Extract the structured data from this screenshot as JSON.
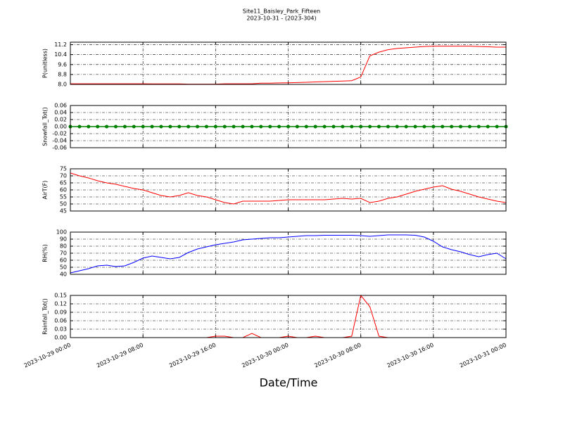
{
  "chart_data": [
    {
      "type": "line",
      "title": "Site11_Baisley_Park_Fifteen",
      "subtitle": "2023-10-31 - (2023-304)",
      "ylabel": "P(unitless)",
      "color": "#ff0000",
      "x": [
        "2023-10-29 00:00",
        "2023-10-29 01:00",
        "2023-10-29 02:00",
        "2023-10-29 03:00",
        "2023-10-29 04:00",
        "2023-10-29 05:00",
        "2023-10-29 06:00",
        "2023-10-29 07:00",
        "2023-10-29 08:00",
        "2023-10-29 09:00",
        "2023-10-29 10:00",
        "2023-10-29 11:00",
        "2023-10-29 12:00",
        "2023-10-29 13:00",
        "2023-10-29 14:00",
        "2023-10-29 15:00",
        "2023-10-29 16:00",
        "2023-10-29 17:00",
        "2023-10-29 18:00",
        "2023-10-29 19:00",
        "2023-10-29 20:00",
        "2023-10-29 21:00",
        "2023-10-29 22:00",
        "2023-10-29 23:00",
        "2023-10-30 00:00",
        "2023-10-30 01:00",
        "2023-10-30 02:00",
        "2023-10-30 03:00",
        "2023-10-30 04:00",
        "2023-10-30 05:00",
        "2023-10-30 06:00",
        "2023-10-30 07:00",
        "2023-10-30 08:00",
        "2023-10-30 09:00",
        "2023-10-30 10:00",
        "2023-10-30 11:00",
        "2023-10-30 12:00",
        "2023-10-30 13:00",
        "2023-10-30 14:00",
        "2023-10-30 15:00",
        "2023-10-30 16:00",
        "2023-10-30 17:00",
        "2023-10-30 18:00",
        "2023-10-30 19:00",
        "2023-10-30 20:00",
        "2023-10-30 21:00",
        "2023-10-30 22:00",
        "2023-10-30 23:00",
        "2023-10-31 00:00"
      ],
      "values": [
        8.05,
        8.05,
        8.05,
        8.05,
        8.05,
        8.05,
        8.05,
        8.05,
        8.05,
        8.04,
        8.04,
        8.04,
        8.04,
        8.02,
        8.02,
        8.02,
        8.02,
        8.05,
        8.05,
        8.05,
        8.05,
        8.1,
        8.1,
        8.12,
        8.13,
        8.15,
        8.17,
        8.2,
        8.22,
        8.25,
        8.27,
        8.3,
        8.6,
        10.3,
        10.6,
        10.8,
        10.9,
        10.95,
        11.0,
        11.05,
        11.08,
        11.08,
        11.08,
        11.08,
        11.08,
        11.05,
        11.03,
        11.0,
        11.0
      ],
      "xlim": [
        "2023-10-29 00:00",
        "2023-10-31 00:00"
      ],
      "xticks": [
        "2023-10-29 00:00",
        "2023-10-29 08:00",
        "2023-10-29 16:00",
        "2023-10-30 00:00",
        "2023-10-30 08:00",
        "2023-10-30 16:00",
        "2023-10-31 00:00"
      ],
      "ylim": [
        8.0,
        11.4
      ],
      "yticks": [
        {
          "value": 8.0,
          "label": "8.0"
        },
        8.8,
        9.6,
        10.4,
        11.2
      ],
      "grid": true
    },
    {
      "type": "line",
      "ylabel": "Snowfall_Tot()",
      "color": "#008000",
      "markers": true,
      "x": [
        "2023-10-29 00:00",
        "2023-10-29 01:00",
        "2023-10-29 02:00",
        "2023-10-29 03:00",
        "2023-10-29 04:00",
        "2023-10-29 05:00",
        "2023-10-29 06:00",
        "2023-10-29 07:00",
        "2023-10-29 08:00",
        "2023-10-29 09:00",
        "2023-10-29 10:00",
        "2023-10-29 11:00",
        "2023-10-29 12:00",
        "2023-10-29 13:00",
        "2023-10-29 14:00",
        "2023-10-29 15:00",
        "2023-10-29 16:00",
        "2023-10-29 17:00",
        "2023-10-29 18:00",
        "2023-10-29 19:00",
        "2023-10-29 20:00",
        "2023-10-29 21:00",
        "2023-10-29 22:00",
        "2023-10-29 23:00",
        "2023-10-30 00:00",
        "2023-10-30 01:00",
        "2023-10-30 02:00",
        "2023-10-30 03:00",
        "2023-10-30 04:00",
        "2023-10-30 05:00",
        "2023-10-30 06:00",
        "2023-10-30 07:00",
        "2023-10-30 08:00",
        "2023-10-30 09:00",
        "2023-10-30 10:00",
        "2023-10-30 11:00",
        "2023-10-30 12:00",
        "2023-10-30 13:00",
        "2023-10-30 14:00",
        "2023-10-30 15:00",
        "2023-10-30 16:00",
        "2023-10-30 17:00",
        "2023-10-30 18:00",
        "2023-10-30 19:00",
        "2023-10-30 20:00",
        "2023-10-30 21:00",
        "2023-10-30 22:00",
        "2023-10-30 23:00",
        "2023-10-31 00:00"
      ],
      "values": [
        0,
        0,
        0,
        0,
        0,
        0,
        0,
        0,
        0,
        0,
        0,
        0,
        0,
        0,
        0,
        0,
        0,
        0,
        0,
        0,
        0,
        0,
        0,
        0,
        0,
        0,
        0,
        0,
        0,
        0,
        0,
        0,
        0,
        0,
        0,
        0,
        0,
        0,
        0,
        0,
        0,
        0,
        0,
        0,
        0,
        0,
        0,
        0,
        0
      ],
      "xlim": [
        "2023-10-29 00:00",
        "2023-10-31 00:00"
      ],
      "xticks": [
        "2023-10-29 00:00",
        "2023-10-29 08:00",
        "2023-10-29 16:00",
        "2023-10-30 00:00",
        "2023-10-30 08:00",
        "2023-10-30 16:00",
        "2023-10-31 00:00"
      ],
      "ylim": [
        -0.06,
        0.06
      ],
      "yticks": [
        -0.06,
        -0.04,
        -0.02,
        {
          "value": 0,
          "label": "0.00"
        },
        0.02,
        0.04,
        0.06
      ],
      "grid": true
    },
    {
      "type": "line",
      "ylabel": "AirT(F)",
      "color": "#ff0000",
      "x": [
        "2023-10-29 00:00",
        "2023-10-29 01:00",
        "2023-10-29 02:00",
        "2023-10-29 03:00",
        "2023-10-29 04:00",
        "2023-10-29 05:00",
        "2023-10-29 06:00",
        "2023-10-29 07:00",
        "2023-10-29 08:00",
        "2023-10-29 09:00",
        "2023-10-29 10:00",
        "2023-10-29 11:00",
        "2023-10-29 12:00",
        "2023-10-29 13:00",
        "2023-10-29 14:00",
        "2023-10-29 15:00",
        "2023-10-29 16:00",
        "2023-10-29 17:00",
        "2023-10-29 18:00",
        "2023-10-29 19:00",
        "2023-10-29 20:00",
        "2023-10-29 21:00",
        "2023-10-29 22:00",
        "2023-10-29 23:00",
        "2023-10-30 00:00",
        "2023-10-30 01:00",
        "2023-10-30 02:00",
        "2023-10-30 03:00",
        "2023-10-30 04:00",
        "2023-10-30 05:00",
        "2023-10-30 06:00",
        "2023-10-30 07:00",
        "2023-10-30 08:00",
        "2023-10-30 09:00",
        "2023-10-30 10:00",
        "2023-10-30 11:00",
        "2023-10-30 12:00",
        "2023-10-30 13:00",
        "2023-10-30 14:00",
        "2023-10-30 15:00",
        "2023-10-30 16:00",
        "2023-10-30 17:00",
        "2023-10-30 18:00",
        "2023-10-30 19:00",
        "2023-10-30 20:00",
        "2023-10-30 21:00",
        "2023-10-30 22:00",
        "2023-10-30 23:00",
        "2023-10-31 00:00"
      ],
      "values": [
        72,
        70,
        68.5,
        66.5,
        65,
        64,
        62.5,
        61,
        60,
        58,
        56,
        55,
        56,
        58,
        56,
        55,
        53,
        51,
        50,
        52,
        52,
        52,
        52,
        52.5,
        53,
        53,
        53,
        53,
        53,
        53.5,
        54,
        53.5,
        54,
        51,
        52,
        54,
        55,
        57,
        59,
        60.5,
        62,
        63,
        60.5,
        59,
        57,
        55,
        53.5,
        52,
        51
      ],
      "xlim": [
        "2023-10-29 00:00",
        "2023-10-31 00:00"
      ],
      "xticks": [
        "2023-10-29 00:00",
        "2023-10-29 08:00",
        "2023-10-29 16:00",
        "2023-10-30 00:00",
        "2023-10-30 08:00",
        "2023-10-30 16:00",
        "2023-10-31 00:00"
      ],
      "ylim": [
        45,
        75
      ],
      "yticks": [
        45,
        50,
        55,
        60,
        65,
        70,
        75
      ],
      "grid": true
    },
    {
      "type": "line",
      "ylabel": "RH(%)",
      "color": "#0000ff",
      "x": [
        "2023-10-29 00:00",
        "2023-10-29 01:00",
        "2023-10-29 02:00",
        "2023-10-29 03:00",
        "2023-10-29 04:00",
        "2023-10-29 05:00",
        "2023-10-29 06:00",
        "2023-10-29 07:00",
        "2023-10-29 08:00",
        "2023-10-29 09:00",
        "2023-10-29 10:00",
        "2023-10-29 11:00",
        "2023-10-29 12:00",
        "2023-10-29 13:00",
        "2023-10-29 14:00",
        "2023-10-29 15:00",
        "2023-10-29 16:00",
        "2023-10-29 17:00",
        "2023-10-29 18:00",
        "2023-10-29 19:00",
        "2023-10-29 20:00",
        "2023-10-29 21:00",
        "2023-10-29 22:00",
        "2023-10-29 23:00",
        "2023-10-30 00:00",
        "2023-10-30 01:00",
        "2023-10-30 02:00",
        "2023-10-30 03:00",
        "2023-10-30 04:00",
        "2023-10-30 05:00",
        "2023-10-30 06:00",
        "2023-10-30 07:00",
        "2023-10-30 08:00",
        "2023-10-30 09:00",
        "2023-10-30 10:00",
        "2023-10-30 11:00",
        "2023-10-30 12:00",
        "2023-10-30 13:00",
        "2023-10-30 14:00",
        "2023-10-30 15:00",
        "2023-10-30 16:00",
        "2023-10-30 17:00",
        "2023-10-30 18:00",
        "2023-10-30 19:00",
        "2023-10-30 20:00",
        "2023-10-30 21:00",
        "2023-10-30 22:00",
        "2023-10-30 23:00",
        "2023-10-31 00:00"
      ],
      "values": [
        42,
        45,
        48,
        52,
        53,
        51,
        52,
        57,
        63,
        66,
        64,
        62,
        64,
        71,
        76,
        79,
        82,
        84,
        86,
        89,
        90,
        91,
        92,
        92,
        93,
        94,
        95,
        95,
        95.5,
        95.5,
        95.5,
        95.5,
        95,
        94,
        95,
        96,
        96,
        96,
        95.5,
        93,
        87,
        79,
        75,
        72,
        68,
        65,
        68,
        70,
        62
      ],
      "xlim": [
        "2023-10-29 00:00",
        "2023-10-31 00:00"
      ],
      "xticks": [
        "2023-10-29 00:00",
        "2023-10-29 08:00",
        "2023-10-29 16:00",
        "2023-10-30 00:00",
        "2023-10-30 08:00",
        "2023-10-30 16:00",
        "2023-10-31 00:00"
      ],
      "ylim": [
        40,
        100
      ],
      "yticks": [
        40,
        50,
        60,
        70,
        80,
        90,
        100
      ],
      "grid": true
    },
    {
      "type": "line",
      "ylabel": "Rainfall_Tot()",
      "xlabel": "Date/Time",
      "color": "#ff0000",
      "x": [
        "2023-10-29 00:00",
        "2023-10-29 01:00",
        "2023-10-29 02:00",
        "2023-10-29 03:00",
        "2023-10-29 04:00",
        "2023-10-29 05:00",
        "2023-10-29 06:00",
        "2023-10-29 07:00",
        "2023-10-29 08:00",
        "2023-10-29 09:00",
        "2023-10-29 10:00",
        "2023-10-29 11:00",
        "2023-10-29 12:00",
        "2023-10-29 13:00",
        "2023-10-29 14:00",
        "2023-10-29 15:00",
        "2023-10-29 16:00",
        "2023-10-29 17:00",
        "2023-10-29 18:00",
        "2023-10-29 19:00",
        "2023-10-29 20:00",
        "2023-10-29 21:00",
        "2023-10-29 22:00",
        "2023-10-29 23:00",
        "2023-10-30 00:00",
        "2023-10-30 01:00",
        "2023-10-30 02:00",
        "2023-10-30 03:00",
        "2023-10-30 04:00",
        "2023-10-30 05:00",
        "2023-10-30 06:00",
        "2023-10-30 07:00",
        "2023-10-30 08:00",
        "2023-10-30 09:00",
        "2023-10-30 10:00",
        "2023-10-30 11:00",
        "2023-10-30 12:00",
        "2023-10-30 13:00",
        "2023-10-30 14:00",
        "2023-10-30 15:00",
        "2023-10-30 16:00",
        "2023-10-30 17:00",
        "2023-10-30 18:00",
        "2023-10-30 19:00",
        "2023-10-30 20:00",
        "2023-10-30 21:00",
        "2023-10-30 22:00",
        "2023-10-30 23:00",
        "2023-10-31 00:00"
      ],
      "values": [
        0,
        0,
        0,
        0,
        0,
        0,
        0,
        0,
        0,
        0,
        0,
        0,
        0,
        0,
        0,
        0,
        0.005,
        0.005,
        0,
        0,
        0.015,
        0,
        0,
        0,
        0.005,
        0,
        0,
        0.005,
        0,
        0,
        0,
        0.005,
        0.15,
        0.11,
        0.005,
        0,
        0,
        0,
        0,
        0,
        0,
        0,
        0,
        0,
        0,
        0,
        0,
        0,
        0
      ],
      "xlim": [
        "2023-10-29 00:00",
        "2023-10-31 00:00"
      ],
      "xticks": [
        "2023-10-29 00:00",
        "2023-10-29 08:00",
        "2023-10-29 16:00",
        "2023-10-30 00:00",
        "2023-10-30 08:00",
        "2023-10-30 16:00",
        "2023-10-31 00:00"
      ],
      "ylim": [
        0,
        0.15
      ],
      "yticks": [
        {
          "value": 0,
          "label": "0.00"
        },
        0.03,
        0.06,
        0.09,
        0.12,
        0.15
      ],
      "grid": true
    }
  ]
}
